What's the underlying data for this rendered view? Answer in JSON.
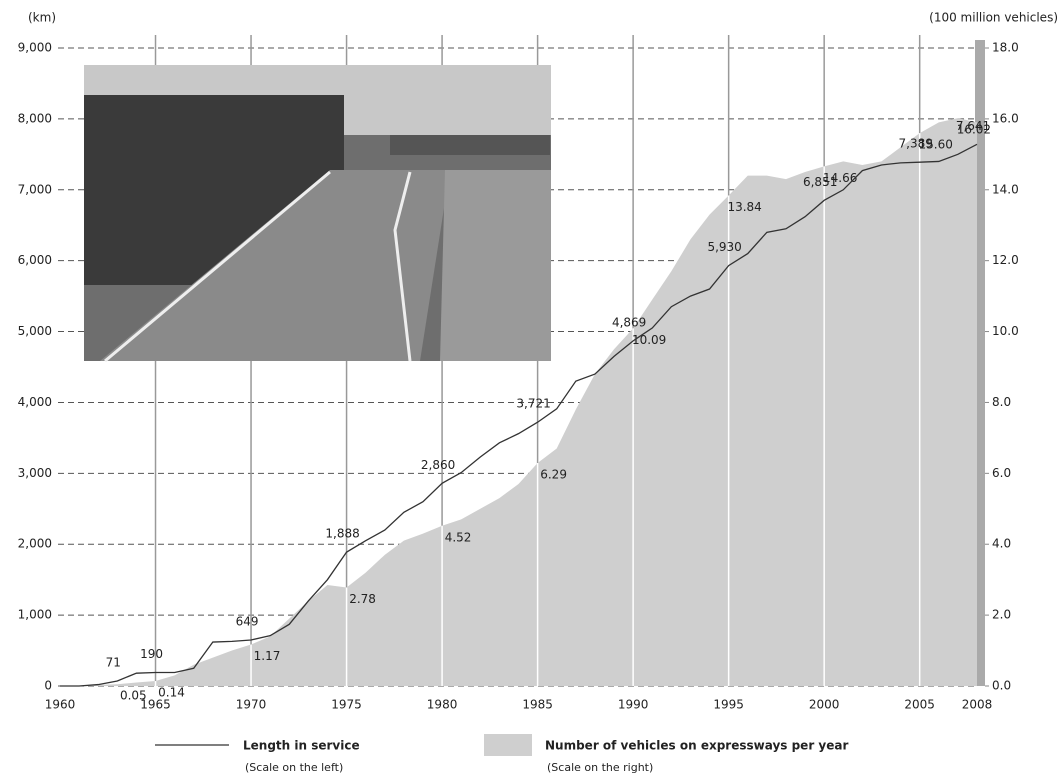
{
  "chart_data": {
    "type": "combo",
    "y_label": "(km)",
    "y2_label": "(100 million vehicles)",
    "x": [
      1960,
      1961,
      1962,
      1963,
      1964,
      1965,
      1966,
      1967,
      1968,
      1969,
      1970,
      1971,
      1972,
      1973,
      1974,
      1975,
      1976,
      1977,
      1978,
      1979,
      1980,
      1981,
      1982,
      1983,
      1984,
      1985,
      1986,
      1987,
      1988,
      1989,
      1990,
      1991,
      1992,
      1993,
      1994,
      1995,
      1996,
      1997,
      1998,
      1999,
      2000,
      2001,
      2002,
      2003,
      2004,
      2005,
      2006,
      2007,
      2008
    ],
    "xlim": [
      1960,
      2008
    ],
    "xticks": [
      1960,
      1965,
      1970,
      1975,
      1980,
      1985,
      1990,
      1995,
      2000,
      2005,
      2008
    ],
    "ylim": [
      0,
      9000
    ],
    "yticks": [
      0,
      {
        "value": 1000,
        "label": "1,000"
      },
      {
        "value": 2000,
        "label": "2,000"
      },
      {
        "value": 3000,
        "label": "3,000"
      },
      {
        "value": 4000,
        "label": "4,000"
      },
      {
        "value": 5000,
        "label": "5,000"
      },
      {
        "value": 6000,
        "label": "6,000"
      },
      {
        "value": 7000,
        "label": "7,000"
      },
      {
        "value": 8000,
        "label": "8,000"
      },
      {
        "value": 9000,
        "label": "9,000"
      }
    ],
    "y2lim": [
      0,
      18
    ],
    "y2ticks": [
      {
        "value": 0,
        "label": "0.0"
      },
      {
        "value": 2,
        "label": "2.0"
      },
      {
        "value": 4,
        "label": "4.0"
      },
      {
        "value": 6,
        "label": "6.0"
      },
      {
        "value": 8,
        "label": "8.0"
      },
      {
        "value": 10,
        "label": "10.0"
      },
      {
        "value": 12,
        "label": "12.0"
      },
      {
        "value": 14,
        "label": "14.0"
      },
      {
        "value": 16,
        "label": "16.0"
      },
      {
        "value": 18,
        "label": "18.0"
      }
    ],
    "grid": true,
    "series": [
      {
        "name": "Length in service",
        "scale_note": "(Scale on the left)",
        "type": "line",
        "axis": "y",
        "color": "#333333",
        "values": [
          0,
          0,
          20,
          71,
          181,
          190,
          190,
          250,
          620,
          630,
          649,
          710,
          870,
          1200,
          1500,
          1888,
          2050,
          2200,
          2450,
          2600,
          2860,
          3010,
          3230,
          3430,
          3560,
          3721,
          3910,
          4300,
          4400,
          4650,
          4869,
          5050,
          5350,
          5500,
          5600,
          5930,
          6100,
          6400,
          6450,
          6620,
          6851,
          7000,
          7270,
          7350,
          7380,
          7389,
          7400,
          7500,
          7641
        ],
        "value_labels": [
          null,
          null,
          null,
          "71",
          null,
          "190",
          null,
          null,
          null,
          null,
          "649",
          null,
          null,
          null,
          null,
          "1,888",
          null,
          null,
          null,
          null,
          "2,860",
          null,
          null,
          null,
          null,
          "3,721",
          null,
          null,
          null,
          null,
          "4,869",
          null,
          null,
          null,
          null,
          "5,930",
          null,
          null,
          null,
          null,
          "6,851",
          null,
          null,
          null,
          null,
          "7,389",
          null,
          null,
          "7,641"
        ]
      },
      {
        "name": "Number of vehicles on expressways per year",
        "scale_note": "(Scale on the right)",
        "type": "area",
        "axis": "y2",
        "color": "#cfcfcf",
        "values": [
          0,
          0.01,
          0.03,
          0.05,
          0.1,
          0.14,
          0.3,
          0.6,
          0.8,
          1.0,
          1.17,
          1.4,
          1.9,
          2.4,
          2.85,
          2.78,
          3.2,
          3.7,
          4.1,
          4.3,
          4.52,
          4.7,
          5.0,
          5.3,
          5.7,
          6.29,
          6.7,
          7.8,
          8.8,
          9.5,
          10.09,
          10.9,
          11.7,
          12.6,
          13.3,
          13.84,
          14.4,
          14.4,
          14.3,
          14.5,
          14.66,
          14.8,
          14.7,
          14.8,
          15.2,
          15.6,
          15.9,
          16.02,
          15.9
        ],
        "value_labels": [
          null,
          null,
          null,
          "0.05",
          null,
          "0.14",
          null,
          null,
          null,
          null,
          "1.17",
          null,
          null,
          null,
          null,
          "2.78",
          null,
          null,
          null,
          null,
          "4.52",
          null,
          null,
          null,
          null,
          "6.29",
          null,
          null,
          null,
          null,
          "10.09",
          null,
          null,
          null,
          null,
          "13.84",
          null,
          null,
          null,
          null,
          "14.66",
          null,
          null,
          null,
          null,
          "15.60",
          null,
          "16.02",
          null
        ]
      }
    ]
  }
}
